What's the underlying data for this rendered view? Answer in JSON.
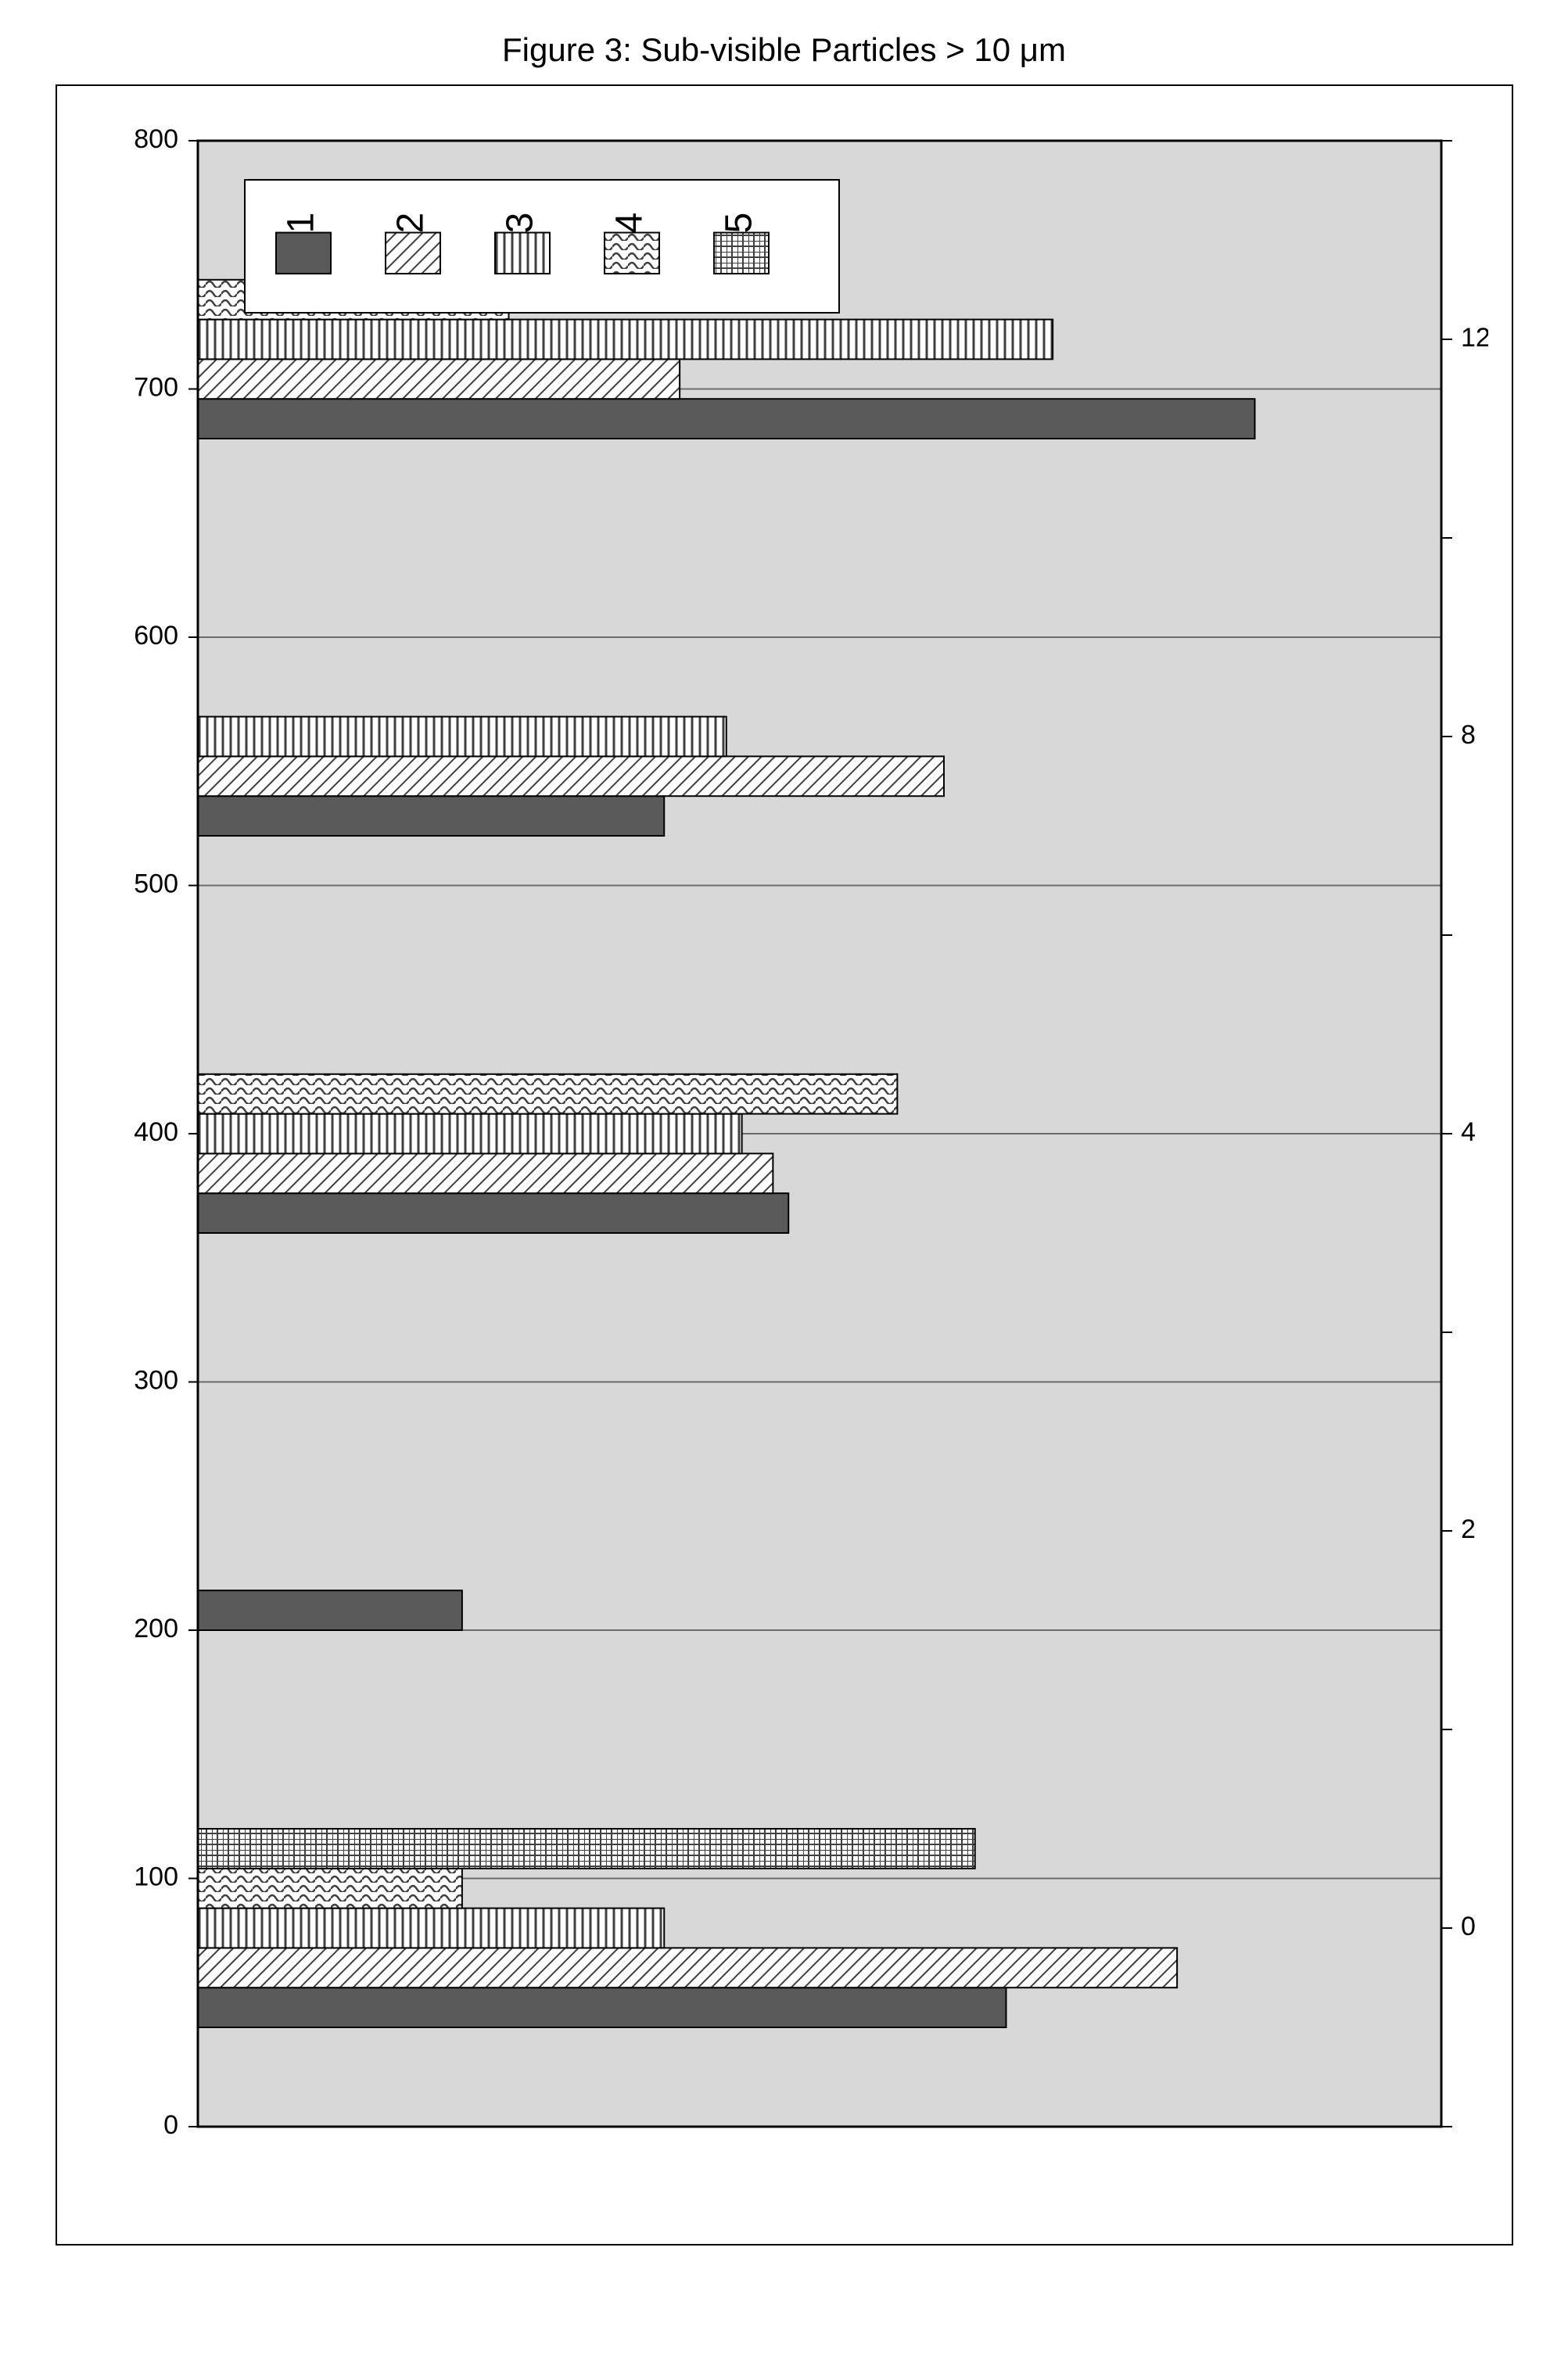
{
  "chart": {
    "type": "bar",
    "title": "Figure 3: Sub-visible Particles > 10 μm",
    "title_fontsize": 42,
    "orientation": "horizontal",
    "categories": [
      "0",
      "2",
      "4",
      "8",
      "12"
    ],
    "series": [
      {
        "name": "1",
        "values": [
          520,
          170,
          380,
          300,
          680
        ],
        "pattern": "solid-dark"
      },
      {
        "name": "2",
        "values": [
          630,
          0,
          370,
          480,
          310
        ],
        "pattern": "diag"
      },
      {
        "name": "3",
        "values": [
          300,
          0,
          350,
          340,
          550
        ],
        "pattern": "vertical"
      },
      {
        "name": "4",
        "values": [
          170,
          0,
          450,
          0,
          200
        ],
        "pattern": "wavy"
      },
      {
        "name": "5",
        "values": [
          500,
          0,
          0,
          0,
          0
        ],
        "pattern": "crosshatch"
      }
    ],
    "xlim": [
      0,
      800
    ],
    "xtick_step": 100,
    "xticks": [
      0,
      100,
      200,
      300,
      400,
      500,
      600,
      700,
      800
    ],
    "yticks": [
      "0",
      "2",
      "4",
      "8",
      "12"
    ],
    "axis_fontsize": 34,
    "tick_label_fontsize": 34,
    "legend_fontsize": 48,
    "legend_position": "top-left",
    "plot_bg": "#d8d8d8",
    "grid_color": "#6b6b6b",
    "outer_border_color": "#000000",
    "axis_color": "#000000",
    "bar_border_color": "#000000",
    "bar_border_width": 2,
    "group_gap": 0.5,
    "bar_gap": 0.0,
    "colors": {
      "dark_fill": "#5a5a5a",
      "pattern_stroke": "#404040",
      "light_bg": "#ffffff"
    }
  }
}
